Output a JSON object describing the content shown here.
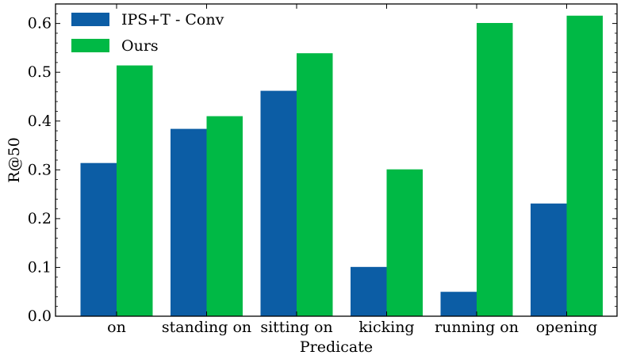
{
  "chart_data": {
    "type": "bar",
    "title": "",
    "xlabel": "Predicate",
    "ylabel": "R@50",
    "categories": [
      "on",
      "standing on",
      "sitting on",
      "kicking",
      "running on",
      "opening"
    ],
    "series": [
      {
        "name": "IPS+T - Conv",
        "color": "#0c5da5",
        "values": [
          0.314,
          0.384,
          0.462,
          0.101,
          0.05,
          0.231
        ]
      },
      {
        "name": "Ours",
        "color": "#00b945",
        "values": [
          0.514,
          0.41,
          0.539,
          0.301,
          0.601,
          0.616
        ]
      }
    ],
    "ylim": [
      0.0,
      0.64
    ],
    "yticks": [
      0.0,
      0.1,
      0.2,
      0.3,
      0.4,
      0.5,
      0.6
    ],
    "ytick_labels": [
      "0.0",
      "0.1",
      "0.2",
      "0.3",
      "0.4",
      "0.5",
      "0.6"
    ],
    "grid": false,
    "legend_position": "top-left"
  }
}
